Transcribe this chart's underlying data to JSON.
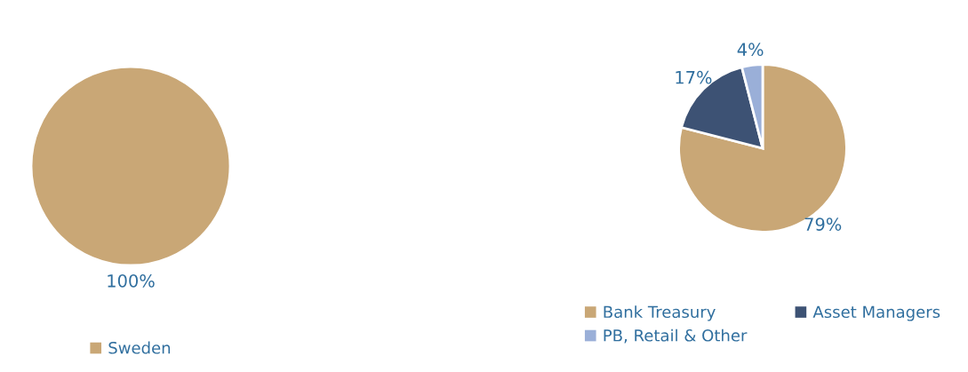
{
  "chart_data": [
    {
      "type": "pie",
      "categories": [
        "Sweden"
      ],
      "values": [
        100
      ],
      "colors": [
        "#c9a776"
      ],
      "value_labels": [
        "100%"
      ],
      "legend": "bottom"
    },
    {
      "type": "pie",
      "categories": [
        "Bank Treasury",
        "Asset Managers",
        "PB, Retail & Other"
      ],
      "values": [
        79,
        17,
        4
      ],
      "colors": [
        "#c9a776",
        "#3d5274",
        "#9aafd8"
      ],
      "value_labels": [
        "79%",
        "17%",
        "4%"
      ],
      "legend": "bottom"
    }
  ]
}
